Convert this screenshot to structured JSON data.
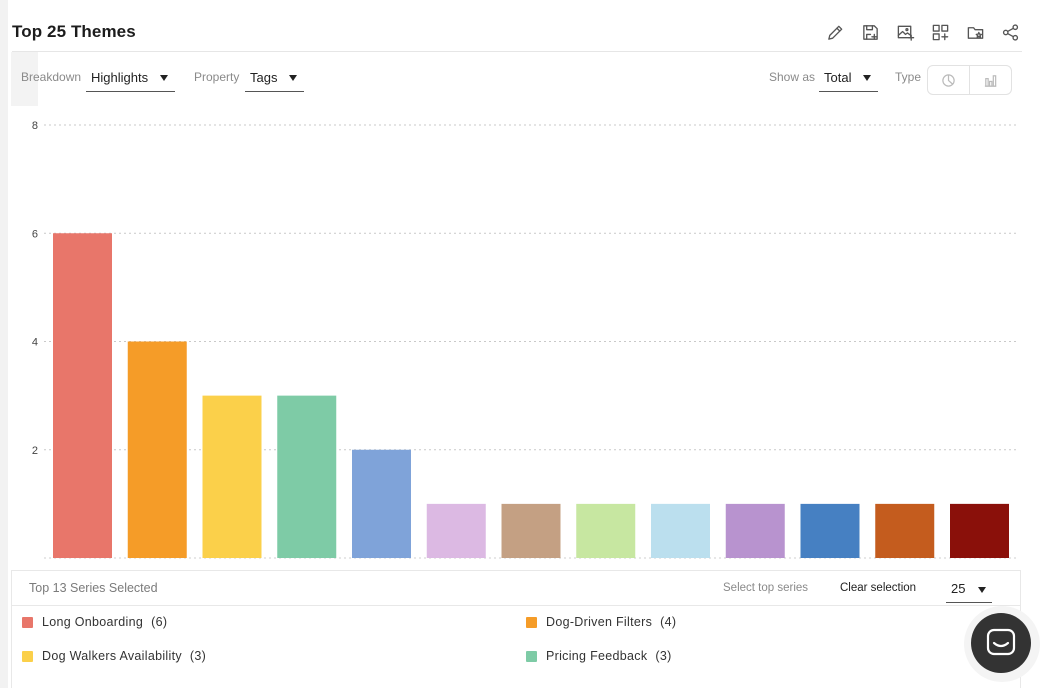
{
  "header": {
    "title": "Top 25 Themes",
    "tools": [
      {
        "icon": "pencil-icon"
      },
      {
        "icon": "save-icon"
      },
      {
        "icon": "image-add-icon"
      },
      {
        "icon": "dashboard-add-icon"
      },
      {
        "icon": "folder-star-icon"
      },
      {
        "icon": "share-icon"
      }
    ]
  },
  "controls": {
    "breakdown_label": "Breakdown",
    "breakdown_value": "Highlights",
    "property_label": "Property",
    "property_value": "Tags",
    "show_as_label": "Show as",
    "show_as_value": "Total",
    "type_label": "Type",
    "type_options": [
      {
        "icon": "pie-chart-icon"
      },
      {
        "icon": "bar-chart-icon"
      }
    ]
  },
  "chart_data": {
    "type": "bar",
    "categories": [
      "Long Onboarding",
      "Dog-Driven Filters",
      "Dog Walkers Availability",
      "Pricing Feedback",
      "",
      "",
      "",
      "",
      "",
      "",
      "",
      "",
      ""
    ],
    "values": [
      6,
      4,
      3,
      3,
      2,
      1,
      1,
      1,
      1,
      1,
      1,
      1,
      1
    ],
    "colors": [
      "#e8766a",
      "#f59c28",
      "#fbd04a",
      "#7ecba6",
      "#7fa3d9",
      "#dcb9e3",
      "#c4a083",
      "#c7e7a1",
      "#bbdfee",
      "#b893cf",
      "#4680c2",
      "#c45c1e",
      "#8a100a"
    ],
    "yticks": [
      2,
      4,
      6,
      8
    ],
    "ylim": [
      0,
      8
    ],
    "grid": true,
    "title": "",
    "xlabel": "",
    "ylabel": ""
  },
  "legend": {
    "selected_text": "Top 13 Series Selected",
    "select_top_label": "Select top series",
    "clear_label": "Clear selection",
    "top_count": "25",
    "items": [
      {
        "label": "Long Onboarding",
        "count": "(6)",
        "color": "#e8766a"
      },
      {
        "label": "Dog-Driven Filters",
        "count": "(4)",
        "color": "#f59c28"
      },
      {
        "label": "Dog Walkers Availability",
        "count": "(3)",
        "color": "#fbd04a"
      },
      {
        "label": "Pricing Feedback",
        "count": "(3)",
        "color": "#7ecba6"
      }
    ]
  },
  "chat": {
    "icon": "chat-icon"
  }
}
